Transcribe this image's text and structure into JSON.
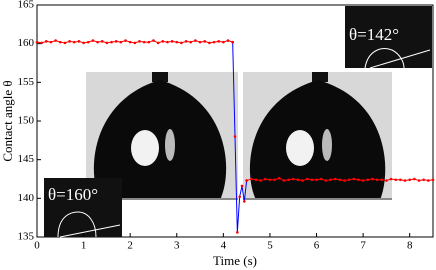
{
  "chart_data": {
    "type": "line",
    "xlabel": "Time (s)",
    "ylabel": "Contact angle θ",
    "xlim": [
      0,
      8.5
    ],
    "ylim": [
      135,
      165
    ],
    "xticks": [
      0,
      1,
      2,
      3,
      4,
      5,
      6,
      7,
      8
    ],
    "yticks": [
      135,
      140,
      145,
      150,
      155,
      160,
      165
    ],
    "annotations": [
      "θ=160°",
      "θ=142°"
    ],
    "series": [
      {
        "color": "#ff0000",
        "marker_color": "#ff0000",
        "x": [
          0,
          0.1,
          0.2,
          0.3,
          0.4,
          0.5,
          0.6,
          0.7,
          0.8,
          0.9,
          1,
          1.1,
          1.2,
          1.3,
          1.4,
          1.5,
          1.6,
          1.7,
          1.8,
          1.9,
          2,
          2.1,
          2.2,
          2.3,
          2.4,
          2.5,
          2.6,
          2.7,
          2.8,
          2.9,
          3,
          3.1,
          3.2,
          3.3,
          3.4,
          3.5,
          3.6,
          3.7,
          3.8,
          3.9,
          4,
          4.1,
          4.2
        ],
        "values": [
          160.2,
          160.1,
          160.3,
          160.2,
          160.4,
          160.2,
          160.1,
          160.3,
          160.2,
          160.3,
          160.1,
          160.2,
          160.4,
          160.2,
          160.3,
          160.1,
          160.2,
          160.3,
          160.2,
          160.4,
          160.2,
          160.1,
          160.3,
          160.2,
          160.2,
          160.4,
          160.1,
          160.3,
          160.2,
          160.3,
          160.2,
          160.1,
          160.3,
          160.2,
          160.4,
          160.2,
          160.3,
          160.1,
          160.2,
          160.3,
          160.2,
          160.4,
          160.2
        ]
      },
      {
        "color": "#0000ff",
        "marker_color": "#ff0000",
        "x": [
          4.2,
          4.25,
          4.3,
          4.35,
          4.4,
          4.45,
          4.5
        ],
        "values": [
          160.2,
          148,
          135.6,
          140.2,
          141.6,
          139.6,
          142.3
        ]
      },
      {
        "color": "#ff0000",
        "marker_color": "#ff0000",
        "x": [
          4.5,
          4.6,
          4.7,
          4.8,
          4.9,
          5,
          5.1,
          5.2,
          5.3,
          5.4,
          5.5,
          5.6,
          5.7,
          5.8,
          5.9,
          6,
          6.1,
          6.2,
          6.3,
          6.4,
          6.5,
          6.6,
          6.7,
          6.8,
          6.9,
          7,
          7.1,
          7.2,
          7.3,
          7.4,
          7.5,
          7.6,
          7.7,
          7.8,
          7.9,
          8,
          8.1,
          8.2,
          8.3,
          8.4,
          8.5
        ],
        "values": [
          142.3,
          142.5,
          142.4,
          142.3,
          142.5,
          142.4,
          142.4,
          142.6,
          142.3,
          142.4,
          142.5,
          142.4,
          142.3,
          142.5,
          142.4,
          142.4,
          142.5,
          142.3,
          142.4,
          142.5,
          142.4,
          142.3,
          142.4,
          142.5,
          142.4,
          142.3,
          142.4,
          142.5,
          142.4,
          142.4,
          142.3,
          142.5,
          142.4,
          142.4,
          142.3,
          142.4,
          142.5,
          142.3,
          142.4,
          142.3,
          142.4
        ]
      }
    ]
  }
}
